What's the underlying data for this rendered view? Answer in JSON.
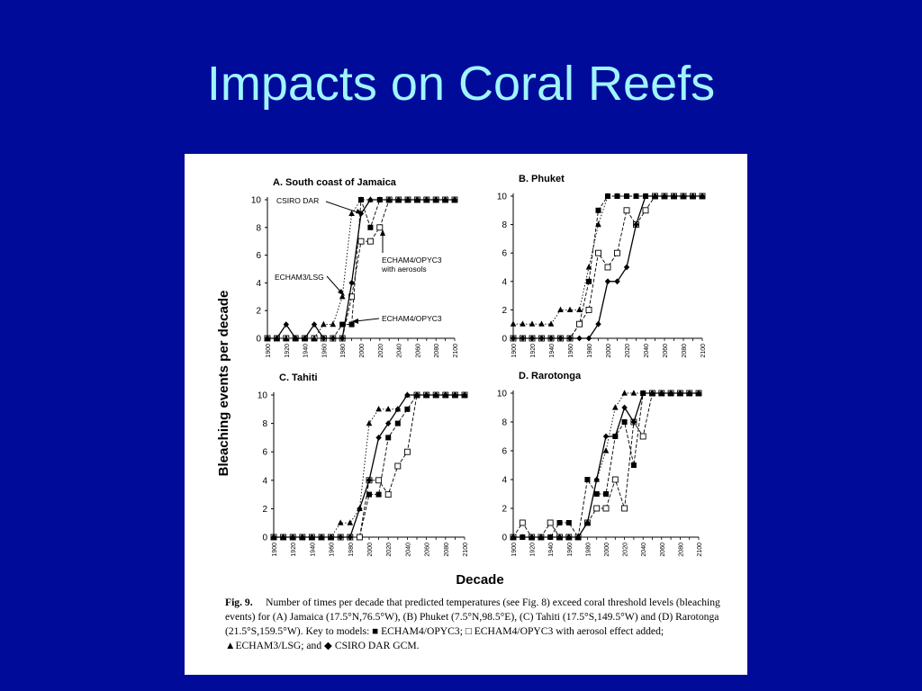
{
  "slide": {
    "title": "Impacts on Coral Reefs"
  },
  "figure": {
    "ylabel": "Bleaching events per decade",
    "xlabel": "Decade",
    "caption": {
      "fig": "Fig. 9.",
      "text": "Number of times per decade that predicted temperatures (see Fig. 8) exceed coral threshold levels (bleaching events) for (A) Jamaica (17.5°N,76.5°W), (B) Phuket (7.5°N,98.5°E), (C) Tahiti (17.5°S,149.5°W) and (D) Rarotonga (21.5°S,159.5°W). Key to models: ■ ECHAM4/OPYC3; □ ECHAM4/OPYC3 with aerosol effect added; ▲ECHAM3/LSG; and ◆ CSIRO DAR GCM."
    },
    "annotations": {
      "csiro": "CSIRO DAR",
      "echam4_aer_1": "ECHAM4/OPYC3",
      "echam4_aer_2": "with aerosols",
      "echam3": "ECHAM3/LSG",
      "echam4": "ECHAM4/OPYC3"
    }
  },
  "chart_data": [
    {
      "type": "line",
      "title": "A. South coast of Jamaica",
      "x": [
        1900,
        1910,
        1920,
        1930,
        1940,
        1950,
        1960,
        1970,
        1980,
        1990,
        2000,
        2010,
        2020,
        2030,
        2040,
        2050,
        2060,
        2070,
        2080,
        2090,
        2100
      ],
      "xlim": [
        1900,
        2100
      ],
      "ylim": [
        0,
        10
      ],
      "xticks": [
        "1900",
        "1920",
        "1940",
        "1960",
        "1980",
        "2000",
        "2020",
        "2040",
        "2060",
        "2080",
        "2100"
      ],
      "yticks": [
        "0",
        "2",
        "4",
        "6",
        "8",
        "10"
      ],
      "series": [
        {
          "name": "ECHAM4/OPYC3",
          "marker": "filled-square",
          "dash": "dashed",
          "values": [
            0,
            0,
            0,
            0,
            0,
            0,
            0,
            0,
            1,
            1,
            10,
            8,
            10,
            10,
            10,
            10,
            10,
            10,
            10,
            10,
            10
          ]
        },
        {
          "name": "ECHAM4/OPYC3 with aerosols",
          "marker": "open-square",
          "dash": "dashed",
          "values": [
            0,
            0,
            0,
            0,
            0,
            0,
            0,
            0,
            0,
            3,
            7,
            7,
            8,
            10,
            10,
            10,
            10,
            10,
            10,
            10,
            10
          ]
        },
        {
          "name": "ECHAM3/LSG",
          "marker": "triangle",
          "dash": "dotted",
          "values": [
            0,
            0,
            0,
            0,
            0,
            0,
            1,
            1,
            3,
            9,
            10,
            10,
            10,
            10,
            10,
            10,
            10,
            10,
            10,
            10,
            10
          ]
        },
        {
          "name": "CSIRO DAR",
          "marker": "diamond",
          "dash": "solid",
          "values": [
            0,
            0,
            1,
            0,
            0,
            1,
            0,
            0,
            0,
            4,
            9,
            10,
            10,
            10,
            10,
            10,
            10,
            10,
            10,
            10,
            10
          ]
        }
      ]
    },
    {
      "type": "line",
      "title": "B. Phuket",
      "x": [
        1900,
        1910,
        1920,
        1930,
        1940,
        1950,
        1960,
        1970,
        1980,
        1990,
        2000,
        2010,
        2020,
        2030,
        2040,
        2050,
        2060,
        2070,
        2080,
        2090,
        2100
      ],
      "xlim": [
        1900,
        2100
      ],
      "ylim": [
        0,
        10
      ],
      "xticks": [
        "1900",
        "1920",
        "1940",
        "1960",
        "1980",
        "2000",
        "2020",
        "2040",
        "2060",
        "2080",
        "2100"
      ],
      "yticks": [
        "0",
        "2",
        "4",
        "6",
        "8",
        "10"
      ],
      "series": [
        {
          "name": "ECHAM4/OPYC3",
          "marker": "filled-square",
          "dash": "dashed",
          "values": [
            0,
            0,
            0,
            0,
            0,
            0,
            0,
            1,
            4,
            9,
            10,
            10,
            10,
            10,
            10,
            10,
            10,
            10,
            10,
            10,
            10
          ]
        },
        {
          "name": "ECHAM4/OPYC3 with aerosols",
          "marker": "open-square",
          "dash": "dashed",
          "values": [
            0,
            0,
            0,
            0,
            0,
            0,
            0,
            1,
            2,
            6,
            5,
            6,
            9,
            8,
            9,
            10,
            10,
            10,
            10,
            10,
            10
          ]
        },
        {
          "name": "ECHAM3/LSG",
          "marker": "triangle",
          "dash": "dotted",
          "values": [
            1,
            1,
            1,
            1,
            1,
            2,
            2,
            2,
            5,
            8,
            10,
            10,
            10,
            10,
            10,
            10,
            10,
            10,
            10,
            10,
            10
          ]
        },
        {
          "name": "CSIRO DAR",
          "marker": "diamond",
          "dash": "solid",
          "values": [
            0,
            0,
            0,
            0,
            0,
            0,
            0,
            0,
            0,
            1,
            4,
            4,
            5,
            8,
            10,
            10,
            10,
            10,
            10,
            10,
            10
          ]
        }
      ]
    },
    {
      "type": "line",
      "title": "C. Tahiti",
      "x": [
        1900,
        1910,
        1920,
        1930,
        1940,
        1950,
        1960,
        1970,
        1980,
        1990,
        2000,
        2010,
        2020,
        2030,
        2040,
        2050,
        2060,
        2070,
        2080,
        2090,
        2100
      ],
      "xlim": [
        1900,
        2100
      ],
      "ylim": [
        0,
        10
      ],
      "xticks": [
        "1900",
        "1920",
        "1940",
        "1960",
        "1980",
        "2000",
        "2020",
        "2040",
        "2060",
        "2080",
        "2100"
      ],
      "yticks": [
        "0",
        "2",
        "4",
        "6",
        "8",
        "10"
      ],
      "series": [
        {
          "name": "ECHAM4/OPYC3",
          "marker": "filled-square",
          "dash": "dashed",
          "values": [
            0,
            0,
            0,
            0,
            0,
            0,
            0,
            0,
            0,
            0,
            3,
            3,
            7,
            8,
            9,
            10,
            10,
            10,
            10,
            10,
            10
          ]
        },
        {
          "name": "ECHAM4/OPYC3 with aerosols",
          "marker": "open-square",
          "dash": "dashed",
          "values": [
            0,
            0,
            0,
            0,
            0,
            0,
            0,
            0,
            0,
            0,
            4,
            4,
            3,
            5,
            6,
            10,
            10,
            10,
            10,
            10,
            10
          ]
        },
        {
          "name": "ECHAM3/LSG",
          "marker": "triangle",
          "dash": "dotted",
          "values": [
            0,
            0,
            0,
            0,
            0,
            0,
            0,
            1,
            1,
            2,
            8,
            9,
            9,
            9,
            10,
            10,
            10,
            10,
            10,
            10,
            10
          ]
        },
        {
          "name": "CSIRO DAR",
          "marker": "diamond",
          "dash": "solid",
          "values": [
            0,
            0,
            0,
            0,
            0,
            0,
            0,
            0,
            0,
            2,
            4,
            7,
            8,
            9,
            10,
            10,
            10,
            10,
            10,
            10,
            10
          ]
        }
      ]
    },
    {
      "type": "line",
      "title": "D. Rarotonga",
      "x": [
        1900,
        1910,
        1920,
        1930,
        1940,
        1950,
        1960,
        1970,
        1980,
        1990,
        2000,
        2010,
        2020,
        2030,
        2040,
        2050,
        2060,
        2070,
        2080,
        2090,
        2100
      ],
      "xlim": [
        1900,
        2100
      ],
      "ylim": [
        0,
        10
      ],
      "xticks": [
        "1900",
        "1920",
        "1940",
        "1960",
        "1980",
        "2000",
        "2020",
        "2040",
        "2060",
        "2080",
        "2100"
      ],
      "yticks": [
        "0",
        "2",
        "4",
        "6",
        "8",
        "10"
      ],
      "series": [
        {
          "name": "ECHAM4/OPYC3",
          "marker": "filled-square",
          "dash": "dashed",
          "values": [
            0,
            0,
            0,
            0,
            0,
            1,
            1,
            0,
            4,
            3,
            3,
            7,
            8,
            5,
            10,
            10,
            10,
            10,
            10,
            10,
            10
          ]
        },
        {
          "name": "ECHAM4/OPYC3 with aerosols",
          "marker": "open-square",
          "dash": "dashed",
          "values": [
            0,
            1,
            0,
            0,
            1,
            0,
            0,
            0,
            1,
            2,
            2,
            4,
            2,
            8,
            7,
            10,
            10,
            10,
            10,
            10,
            10
          ]
        },
        {
          "name": "ECHAM3/LSG",
          "marker": "triangle",
          "dash": "dotted",
          "values": [
            0,
            0,
            0,
            0,
            0,
            0,
            0,
            0,
            1,
            4,
            6,
            9,
            10,
            10,
            10,
            10,
            10,
            10,
            10,
            10,
            10
          ]
        },
        {
          "name": "CSIRO DAR",
          "marker": "diamond",
          "dash": "solid",
          "values": [
            0,
            0,
            0,
            0,
            0,
            0,
            0,
            0,
            1,
            4,
            7,
            7,
            9,
            8,
            10,
            10,
            10,
            10,
            10,
            10,
            10
          ]
        }
      ]
    }
  ]
}
